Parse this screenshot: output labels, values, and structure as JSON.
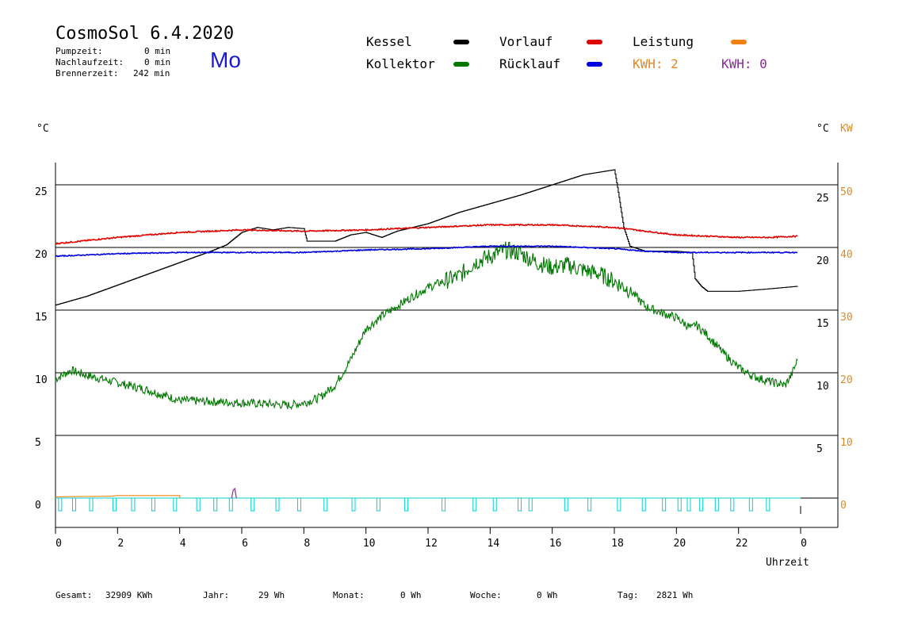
{
  "header": {
    "title": "CosmoSol 6.4.2020",
    "day": "Mo",
    "pump_label": "Pumpzeit:",
    "pump_value": "0 min",
    "after_label": "Nachlaufzeit:",
    "after_value": "0 min",
    "burner_label": "Brennerzeit:",
    "burner_value": "242 min"
  },
  "legend": {
    "kessel": "Kessel",
    "kollektor": "Kollektor",
    "vorlauf": "Vorlauf",
    "ruecklauf": "Rücklauf",
    "leistung": "Leistung",
    "kwh1": "KWH: 2",
    "kwh2": "KWH: 0",
    "colors": {
      "kessel": "#000000",
      "kollektor": "#007800",
      "vorlauf": "#e00000",
      "ruecklauf": "#0000e0",
      "leistung": "#f08010",
      "kwh2": "#8a2a9a",
      "pump": "#00d0d0"
    }
  },
  "axes": {
    "left_unit": "°C",
    "right_unit_c": "°C",
    "right_unit_kw": "KW",
    "x_label": "Uhrzeit"
  },
  "footer": {
    "gesamt_label": "Gesamt:",
    "gesamt_value": "32909 KWh",
    "jahr_label": "Jahr:",
    "jahr_value": "29 Wh",
    "monat_label": "Monat:",
    "monat_value": "0 Wh",
    "woche_label": "Woche:",
    "woche_value": "0 Wh",
    "tag_label": "Tag:",
    "tag_value": "2821 Wh"
  },
  "chart_data": {
    "type": "line",
    "x_unit": "hour",
    "xlim": [
      0,
      24
    ],
    "ylim": [
      -2,
      27
    ],
    "x_ticks": [
      "0",
      "2",
      "4",
      "6",
      "8",
      "10",
      "12",
      "14",
      "16",
      "18",
      "20",
      "22",
      "0"
    ],
    "y_ticks_left": [
      "0",
      "5",
      "10",
      "15",
      "20",
      "25"
    ],
    "y_ticks_right_c": [
      "5",
      "10",
      "15",
      "20",
      "25"
    ],
    "y_ticks_right_kw": [
      "0",
      "10",
      "20",
      "30",
      "40",
      "50"
    ],
    "grid": "horizontal",
    "series": [
      {
        "name": "Kessel",
        "color": "#000000",
        "x": [
          0,
          1,
          2,
          3,
          4,
          5,
          5.5,
          6,
          6.5,
          7,
          7.5,
          8,
          8.1,
          9,
          9.5,
          10,
          10.5,
          11,
          12,
          13,
          14,
          15,
          16,
          17,
          18,
          18.1,
          18.3,
          18.5,
          19,
          20,
          20.5,
          20.6,
          20.8,
          21,
          22,
          23,
          23.9
        ],
        "y": [
          15.4,
          16.1,
          17.0,
          17.9,
          18.8,
          19.7,
          20.2,
          21.2,
          21.6,
          21.4,
          21.6,
          21.5,
          20.5,
          20.5,
          21.0,
          21.2,
          20.8,
          21.3,
          21.9,
          22.8,
          23.5,
          24.2,
          25.0,
          25.8,
          26.2,
          24.8,
          21.6,
          20.1,
          19.7,
          19.7,
          19.6,
          17.5,
          16.9,
          16.5,
          16.5,
          16.7,
          16.9
        ]
      },
      {
        "name": "Kollektor",
        "color": "#007800",
        "x": [
          0,
          0.5,
          1,
          2,
          3,
          4,
          5,
          6,
          7,
          7.5,
          8,
          8.5,
          9,
          9.5,
          10,
          10.5,
          11,
          11.5,
          12,
          12.5,
          13,
          13.5,
          14,
          14.5,
          15,
          15.5,
          16,
          16.5,
          17,
          17.5,
          18,
          18.5,
          19,
          19.5,
          20,
          20.5,
          20.6,
          21,
          21.5,
          22,
          22.5,
          23,
          23.5,
          23.7,
          23.9
        ],
        "y": [
          9.5,
          10.2,
          9.8,
          9.2,
          8.6,
          7.8,
          7.7,
          7.6,
          7.5,
          7.4,
          7.6,
          8.0,
          9.0,
          11.0,
          13.5,
          14.5,
          15.3,
          16.1,
          16.8,
          17.3,
          17.7,
          18.8,
          19.3,
          19.8,
          19.5,
          18.8,
          18.4,
          18.6,
          18.2,
          17.9,
          17.3,
          16.6,
          15.3,
          14.8,
          14.4,
          13.5,
          13.9,
          13.0,
          11.6,
          10.4,
          9.7,
          9.3,
          9.0,
          9.8,
          11.0
        ]
      },
      {
        "name": "Vorlauf",
        "color": "#e00000",
        "x": [
          0,
          2,
          4,
          6,
          8,
          10,
          12,
          14,
          16,
          18,
          19,
          20,
          21,
          22,
          23,
          23.9
        ],
        "y": [
          20.3,
          20.8,
          21.2,
          21.4,
          21.3,
          21.4,
          21.6,
          21.8,
          21.8,
          21.6,
          21.3,
          21.0,
          20.9,
          20.8,
          20.8,
          20.9
        ]
      },
      {
        "name": "Rücklauf",
        "color": "#0000e0",
        "x": [
          0,
          2,
          4,
          6,
          8,
          10,
          12,
          14,
          16,
          18,
          19,
          20,
          21,
          22,
          23,
          23.9
        ],
        "y": [
          19.3,
          19.5,
          19.6,
          19.6,
          19.6,
          19.8,
          19.9,
          20.1,
          20.1,
          19.9,
          19.7,
          19.6,
          19.6,
          19.6,
          19.6,
          19.6
        ]
      },
      {
        "name": "Leistung",
        "color": "#f08010",
        "x": [
          0,
          1.8,
          2,
          3,
          4,
          4.01
        ],
        "y": [
          0.1,
          0.15,
          0.2,
          0.2,
          0.2,
          0
        ]
      }
    ],
    "pump_pulses_hours": [
      0.15,
      0.6,
      1.15,
      1.9,
      2.5,
      3.15,
      3.85,
      4.6,
      5.15,
      5.65,
      6.35,
      7.15,
      7.85,
      8.7,
      9.6,
      10.4,
      11.3,
      12.5,
      13.5,
      14.15,
      14.95,
      15.3,
      16.45,
      17.2,
      18.15,
      18.95,
      19.6,
      20.1,
      20.4,
      20.8,
      21.3,
      21.8,
      22.4,
      22.95
    ],
    "kwh2_spike_hour": 5.75
  }
}
